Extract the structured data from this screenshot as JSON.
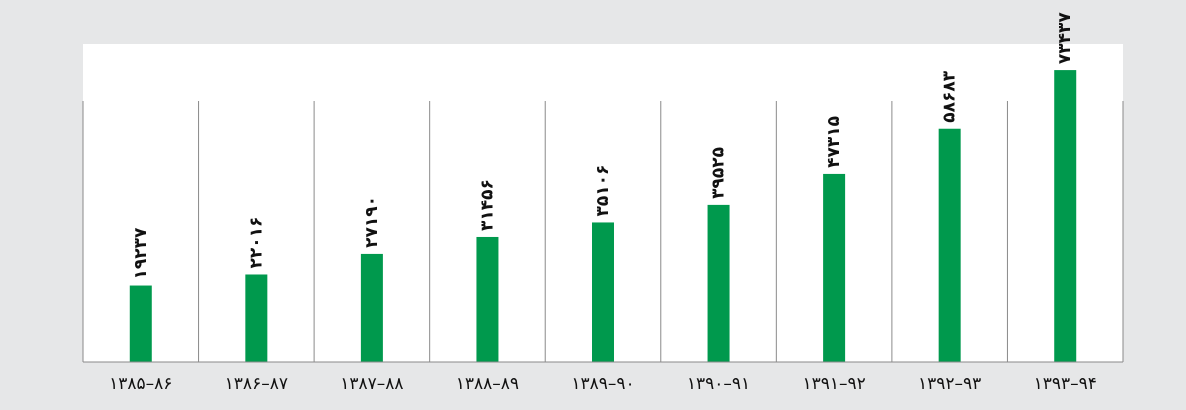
{
  "chart_data": {
    "type": "bar",
    "categories": [
      "۱۳۸۵–۸۶",
      "۱۳۸۶–۸۷",
      "۱۳۸۷–۸۸",
      "۱۳۸۸–۸۹",
      "۱۳۸۹–۹۰",
      "۱۳۹۰–۹۱",
      "۱۳۹۱–۹۲",
      "۱۳۹۲–۹۳",
      "۱۳۹۳–۹۴"
    ],
    "values": [
      19237,
      22016,
      27190,
      31456,
      35106,
      39525,
      47315,
      58683,
      73437
    ],
    "value_labels": [
      "۱۹۲۳۷",
      "۲۲۰۱۶",
      "۲۷۱۹۰",
      "۳۱۴۵۶",
      "۳۵۱۰۶",
      "۳۹۵۲۵",
      "۴۷۳۱۵",
      "۵۸۶۸۳",
      "۷۳۴۳۷"
    ],
    "title": "",
    "xlabel": "",
    "ylabel": "",
    "ylim": [
      0,
      80000
    ],
    "grid": "vertical separators",
    "legend": "none",
    "colors": {
      "bar": "#00994d",
      "background": "#e6e7e8",
      "plot_background": "#ffffff",
      "separator": "#8a8a8a"
    }
  }
}
